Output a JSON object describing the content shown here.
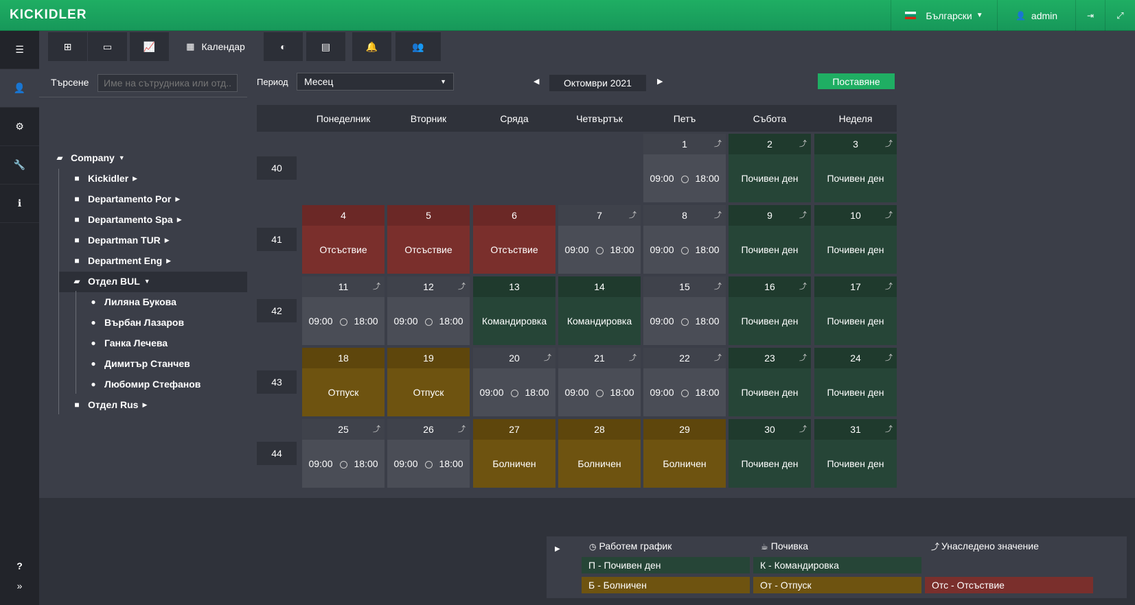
{
  "header": {
    "logo": "KICKIDLER",
    "language": "Български",
    "user": "admin"
  },
  "tabs": {
    "calendar_label": "Календар"
  },
  "search": {
    "label": "Търсене",
    "placeholder": "Име на сътрудника или отд..."
  },
  "tree": {
    "root": "Company",
    "departments": [
      "Kickidler",
      "Departamento Por",
      "Departamento Spa",
      "Departman TUR",
      "Department Eng"
    ],
    "selected_dept": "Отдел BUL",
    "employees": [
      "Лиляна Букова",
      "Върбан Лазаров",
      "Ганка Лечева",
      "Димитър Станчев",
      "Любомир Стефанов"
    ],
    "last_dept": "Отдел Rus"
  },
  "controls": {
    "period_label": "Период",
    "period_value": "Месец",
    "month": "Октомври 2021",
    "apply": "Поставяне"
  },
  "calendar": {
    "days": [
      "Понеделник",
      "Вторник",
      "Сряда",
      "Четвъртък",
      "Петъ",
      "Събота",
      "Неделя"
    ],
    "weeks": [
      "40",
      "41",
      "42",
      "43",
      "44"
    ],
    "work_start": "09:00",
    "work_end": "18:00",
    "labels": {
      "rest": "Почивен ден",
      "absent": "Отсъствие",
      "trip": "Командировка",
      "vacation": "Отпуск",
      "sick": "Болничен"
    },
    "cells": [
      {
        "d": "1",
        "t": "work"
      },
      {
        "d": "2",
        "t": "rest"
      },
      {
        "d": "3",
        "t": "rest"
      },
      {
        "d": "4",
        "t": "absent"
      },
      {
        "d": "5",
        "t": "absent"
      },
      {
        "d": "6",
        "t": "absent"
      },
      {
        "d": "7",
        "t": "work"
      },
      {
        "d": "8",
        "t": "work"
      },
      {
        "d": "9",
        "t": "rest"
      },
      {
        "d": "10",
        "t": "rest"
      },
      {
        "d": "11",
        "t": "work"
      },
      {
        "d": "12",
        "t": "work"
      },
      {
        "d": "13",
        "t": "trip"
      },
      {
        "d": "14",
        "t": "trip"
      },
      {
        "d": "15",
        "t": "work"
      },
      {
        "d": "16",
        "t": "rest"
      },
      {
        "d": "17",
        "t": "rest"
      },
      {
        "d": "18",
        "t": "vacation"
      },
      {
        "d": "19",
        "t": "vacation"
      },
      {
        "d": "20",
        "t": "work"
      },
      {
        "d": "21",
        "t": "work"
      },
      {
        "d": "22",
        "t": "work"
      },
      {
        "d": "23",
        "t": "rest"
      },
      {
        "d": "24",
        "t": "rest"
      },
      {
        "d": "25",
        "t": "work"
      },
      {
        "d": "26",
        "t": "work"
      },
      {
        "d": "27",
        "t": "sick"
      },
      {
        "d": "28",
        "t": "sick"
      },
      {
        "d": "29",
        "t": "sick"
      },
      {
        "d": "30",
        "t": "rest"
      },
      {
        "d": "31",
        "t": "rest"
      }
    ]
  },
  "legend": {
    "schedule": "Работем график",
    "break": "Почивка",
    "inherited": "Унаследено значение",
    "rest": "П - Почивен ден",
    "trip": "К - Командировка",
    "sick": "Б - Болничен",
    "vacation": "От - Отпуск",
    "absent": "Отс - Отсъствие"
  }
}
